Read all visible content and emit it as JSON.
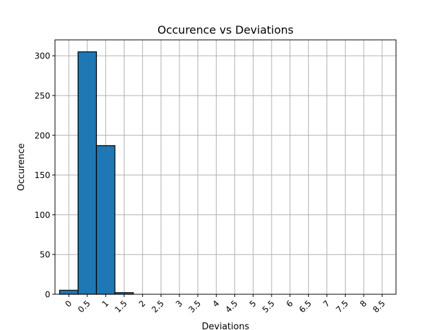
{
  "chart_data": {
    "type": "bar",
    "title": "Occurence vs Deviations",
    "xlabel": "Deviations",
    "ylabel": "Occurence",
    "xlim": [
      -0.375,
      8.875
    ],
    "ylim": [
      0,
      320
    ],
    "xticks": [
      0,
      0.5,
      1,
      1.5,
      2,
      2.5,
      3,
      3.5,
      4,
      4.5,
      5,
      5.5,
      6,
      6.5,
      7,
      7.5,
      8,
      8.5
    ],
    "xtick_labels": [
      "0",
      "0.5",
      "1",
      "1.5",
      "2",
      "2.5",
      "3",
      "3.5",
      "4",
      "4.5",
      "5",
      "5.5",
      "6",
      "6.5",
      "7",
      "7.5",
      "8",
      "8.5"
    ],
    "yticks": [
      0,
      50,
      100,
      150,
      200,
      250,
      300
    ],
    "ytick_labels": [
      "0",
      "50",
      "100",
      "150",
      "200",
      "250",
      "300"
    ],
    "bin_width": 0.5,
    "bins": [
      {
        "x0": -0.25,
        "value": 5
      },
      {
        "x0": 0.25,
        "value": 305
      },
      {
        "x0": 0.75,
        "value": 187
      },
      {
        "x0": 1.25,
        "value": 2
      },
      {
        "x0": 1.75,
        "value": 0
      },
      {
        "x0": 2.25,
        "value": 0
      },
      {
        "x0": 2.75,
        "value": 0
      },
      {
        "x0": 3.25,
        "value": 0
      },
      {
        "x0": 3.75,
        "value": 0
      },
      {
        "x0": 4.25,
        "value": 0
      },
      {
        "x0": 4.75,
        "value": 0
      },
      {
        "x0": 5.25,
        "value": 0
      },
      {
        "x0": 5.75,
        "value": 0
      },
      {
        "x0": 6.25,
        "value": 0
      },
      {
        "x0": 6.75,
        "value": 0
      },
      {
        "x0": 7.25,
        "value": 0
      },
      {
        "x0": 7.75,
        "value": 0
      },
      {
        "x0": 8.25,
        "value": 0
      }
    ],
    "grid": true,
    "bar_color": "#1f77b4",
    "edge_color": "#000000",
    "grid_color": "#b0b0b0"
  }
}
